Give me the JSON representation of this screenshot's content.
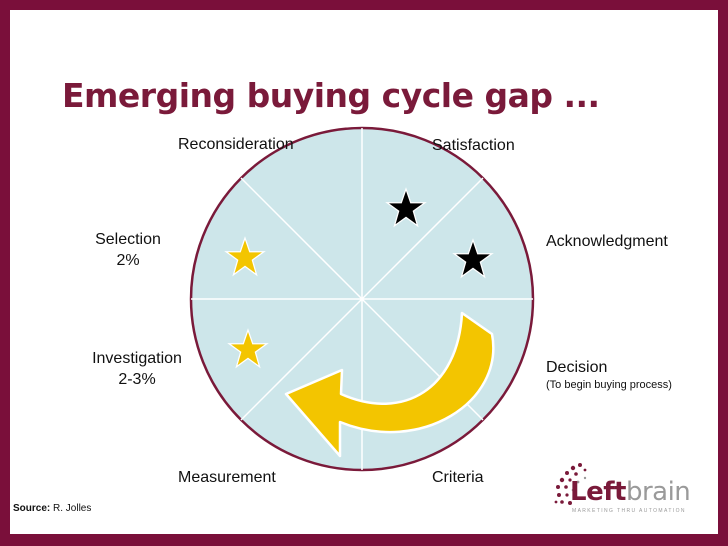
{
  "slide": {
    "title": "Emerging buying cycle gap ...",
    "stages": {
      "reconsideration": "Reconsideration",
      "satisfaction": "Satisfaction",
      "acknowledgment": "Acknowledgment",
      "decision": "Decision",
      "decision_note": "(To begin buying process)",
      "criteria": "Criteria",
      "measurement": "Measurement",
      "investigation": "Investigation",
      "investigation_value": "2-3%",
      "selection": "Selection",
      "selection_value": "2%"
    },
    "source_label": "Source:",
    "source_value": "R. Jolles",
    "logo": {
      "left": "Left",
      "right": "brain",
      "tagline": "MARKETING THRU AUTOMATION"
    },
    "colors": {
      "frame": "#7a0f3a",
      "title": "#7a1a3a",
      "circle_fill": "#cde6ea",
      "circle_stroke": "#7a1a3a",
      "arrow": "#f3c500",
      "star_gold": "#f3c500",
      "star_black": "#000000"
    },
    "icons": [
      "star-gold",
      "star-black",
      "curved-arrow"
    ]
  }
}
